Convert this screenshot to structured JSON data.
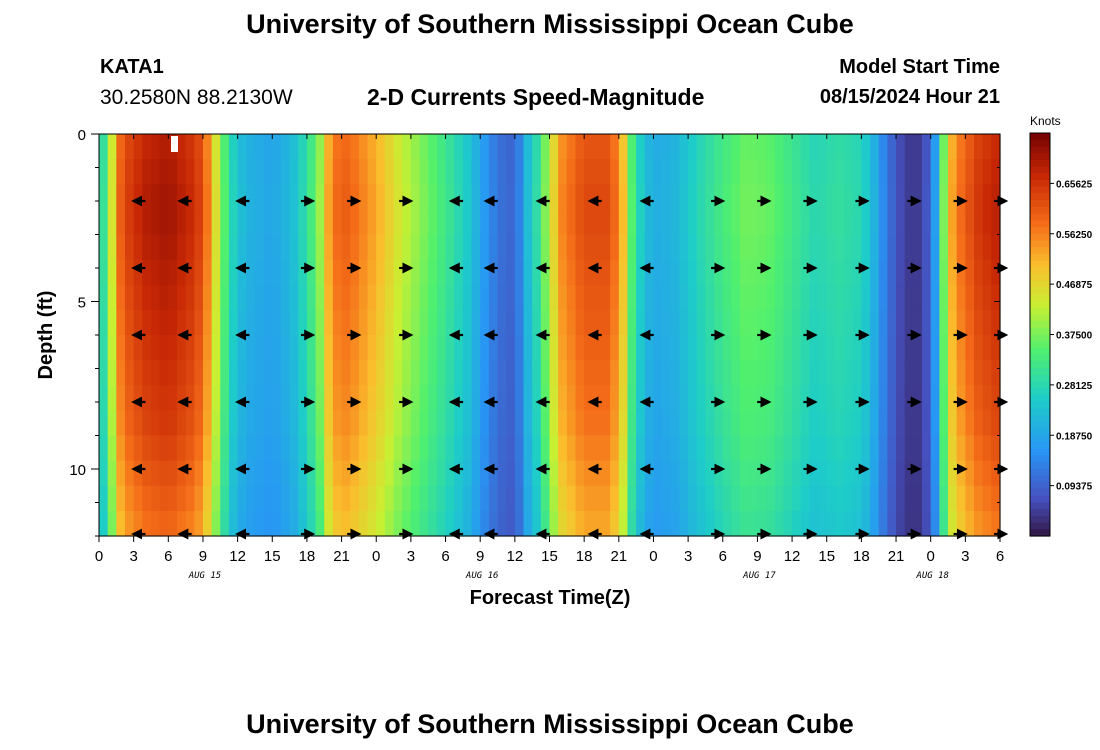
{
  "header": {
    "title": "University of Southern Mississippi Ocean Cube",
    "station_id": "KATA1",
    "coords": "30.2580N  88.2130W",
    "chart_title": "2-D Currents Speed-Magnitude",
    "model_start_label": "Model Start Time",
    "model_start_value": "08/15/2024 Hour 21"
  },
  "footer": {
    "title": "University of Southern Mississippi Ocean Cube"
  },
  "chart_data": {
    "type": "heatmap",
    "title": "2-D Currents Speed-Magnitude",
    "xlabel": "Forecast Time(Z)",
    "ylabel": "Depth (ft)",
    "ylim": [
      0,
      12
    ],
    "y_ticks": [
      0,
      5,
      10
    ],
    "x_hours": [
      0,
      3,
      6,
      9,
      12,
      15,
      18,
      21,
      24,
      27,
      30,
      33,
      36,
      39,
      42,
      45,
      48,
      51,
      54,
      57,
      60,
      63,
      66,
      69,
      72,
      75,
      78
    ],
    "x_tick_labels": [
      "0",
      "3",
      "6",
      "9",
      "12",
      "15",
      "18",
      "21",
      "0",
      "3",
      "6",
      "9",
      "12",
      "15",
      "18",
      "21",
      "0",
      "3",
      "6",
      "9",
      "12",
      "15",
      "18",
      "21",
      "0",
      "3",
      "6"
    ],
    "date_labels": [
      {
        "hour": 9,
        "label": "AUG 15"
      },
      {
        "hour": 33,
        "label": "AUG 16"
      },
      {
        "hour": 57,
        "label": "AUG 17"
      },
      {
        "hour": 72,
        "label": "AUG 18"
      }
    ],
    "speed_profile_knots": {
      "hours": [
        0,
        0.5,
        1,
        1.5,
        2,
        4,
        6,
        8,
        9,
        9.5,
        10,
        10.5,
        11,
        11.5,
        12,
        13,
        14,
        15,
        16,
        17,
        18,
        19,
        19.5,
        20,
        21,
        22,
        24,
        26,
        28,
        30,
        32,
        33,
        34,
        35,
        36,
        36.5,
        37,
        38,
        40,
        42,
        44,
        45,
        45.5,
        46,
        47,
        48,
        50,
        52,
        54,
        56,
        58,
        60,
        62,
        64,
        66,
        67,
        68,
        69,
        70,
        71,
        72,
        72.5,
        73,
        74,
        76,
        78
      ],
      "values": [
        0.26,
        0.32,
        0.42,
        0.52,
        0.62,
        0.68,
        0.7,
        0.66,
        0.62,
        0.55,
        0.47,
        0.4,
        0.33,
        0.28,
        0.24,
        0.21,
        0.2,
        0.19,
        0.21,
        0.24,
        0.3,
        0.38,
        0.45,
        0.55,
        0.6,
        0.58,
        0.52,
        0.44,
        0.38,
        0.32,
        0.25,
        0.19,
        0.14,
        0.11,
        0.1,
        0.15,
        0.22,
        0.3,
        0.55,
        0.62,
        0.62,
        0.56,
        0.48,
        0.36,
        0.25,
        0.2,
        0.22,
        0.28,
        0.33,
        0.37,
        0.36,
        0.32,
        0.28,
        0.3,
        0.28,
        0.22,
        0.14,
        0.08,
        0.05,
        0.05,
        0.1,
        0.2,
        0.35,
        0.55,
        0.64,
        0.68
      ]
    },
    "depth_rows": 16,
    "depth_scale": [
      1.0,
      1.01,
      1.02,
      1.02,
      1.01,
      1.0,
      0.99,
      0.98,
      0.97,
      0.96,
      0.95,
      0.94,
      0.92,
      0.9,
      0.88,
      0.86
    ],
    "arrows": {
      "depths": [
        2,
        4,
        6,
        8,
        10,
        12
      ],
      "hours": [
        3.5,
        7.5,
        12.5,
        18,
        22,
        26.5,
        31,
        34,
        38.5,
        43,
        47.5,
        53.5,
        57.5,
        61.5,
        66,
        70.5,
        74.5,
        78
      ],
      "directions": [
        "W",
        "W",
        "W",
        "E",
        "E",
        "E",
        "W",
        "W",
        "W",
        "W",
        "W",
        "E",
        "E",
        "E",
        "E",
        "E",
        "E",
        "E"
      ]
    },
    "colorbar": {
      "label": "Knots",
      "range": [
        0.0,
        0.75
      ],
      "tick_values": [
        0.65625,
        0.5625,
        0.46875,
        0.375,
        0.28125,
        0.1875,
        0.09375
      ],
      "tick_labels": [
        "0.65625",
        "0.56250",
        "0.46875",
        "0.37500",
        "0.28125",
        "0.18750",
        "0.09375"
      ]
    }
  }
}
